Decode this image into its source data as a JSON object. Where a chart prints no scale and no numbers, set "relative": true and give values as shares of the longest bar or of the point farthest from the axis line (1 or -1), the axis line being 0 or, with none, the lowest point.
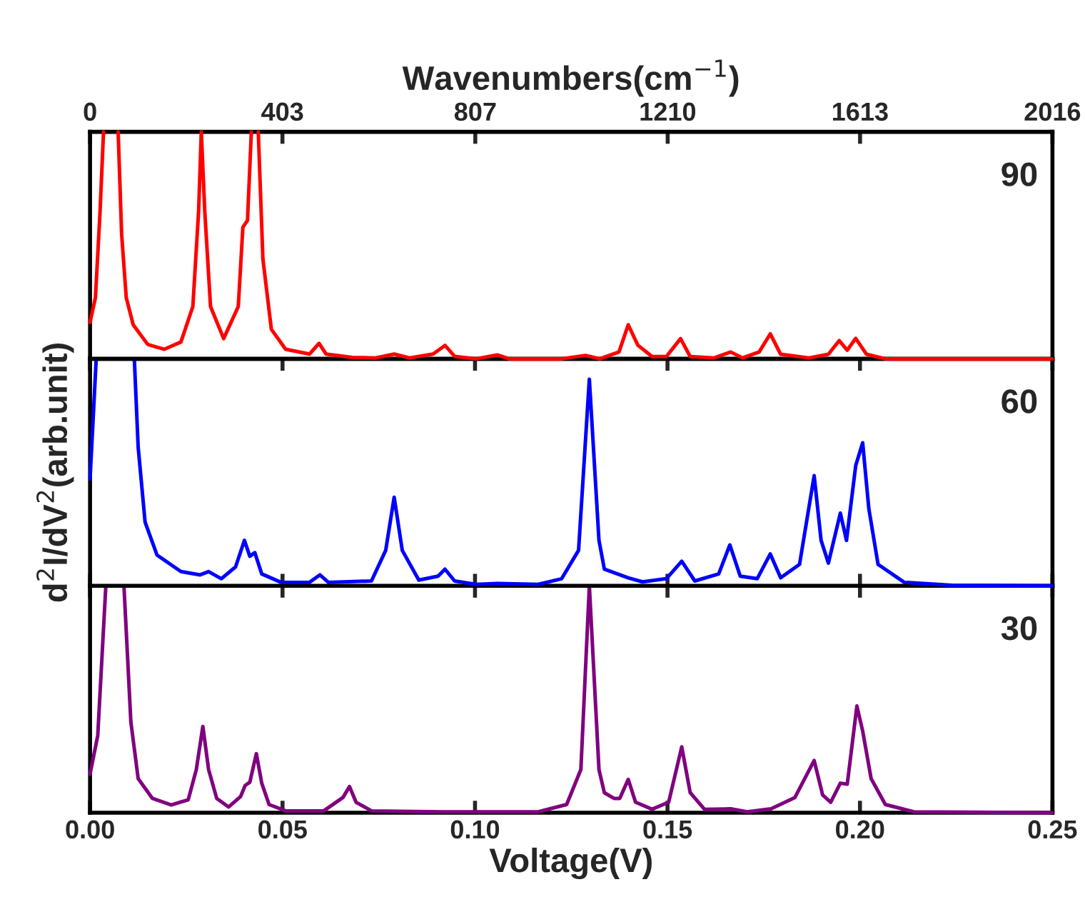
{
  "chart_data": [
    {
      "type": "line",
      "relative": true,
      "annotations": [
        "90"
      ],
      "tick_labels": "x2",
      "xlim": [
        0,
        0.25
      ],
      "x2label": "Wavenumbers(cm$^{−1}$)",
      "x2lim": [
        0,
        2016
      ],
      "x2ticks": [
        0,
        403,
        807,
        1210,
        1613,
        2016
      ],
      "series": [
        {
          "color": "#ff0000",
          "x": [
            0.0,
            0.0014,
            0.0026,
            0.0035,
            0.0054,
            0.0073,
            0.0082,
            0.0094,
            0.0112,
            0.015,
            0.0193,
            0.0236,
            0.0267,
            0.0282,
            0.0289,
            0.0298,
            0.0313,
            0.0347,
            0.0385,
            0.0397,
            0.0409,
            0.0419,
            0.0428,
            0.0437,
            0.0449,
            0.0471,
            0.0508,
            0.057,
            0.0595,
            0.0613,
            0.0681,
            0.0742,
            0.079,
            0.083,
            0.0891,
            0.0922,
            0.0947,
            0.1003,
            0.1058,
            0.1089,
            0.1225,
            0.1287,
            0.1324,
            0.1374,
            0.1398,
            0.1423,
            0.146,
            0.1497,
            0.1534,
            0.1559,
            0.1621,
            0.1664,
            0.1695,
            0.1738,
            0.1767,
            0.1794,
            0.1868,
            0.1918,
            0.1946,
            0.1967,
            0.1989,
            0.2017,
            0.2066,
            0.2499
          ],
          "values": [
            0.16,
            0.27,
            0.65,
            1,
            null,
            1,
            0.55,
            0.27,
            0.15,
            0.063,
            0.042,
            0.074,
            0.23,
            0.65,
            1,
            0.65,
            0.23,
            0.089,
            0.23,
            0.58,
            0.61,
            1,
            null,
            1,
            0.44,
            0.13,
            0.042,
            0.021,
            0.068,
            0.021,
            0.006,
            0.004,
            0.021,
            0.004,
            0.021,
            0.059,
            0.011,
            0,
            0.017,
            0,
            0,
            0.015,
            0,
            0.03,
            0.15,
            0.06,
            0.01,
            0.01,
            0.089,
            0.01,
            0.004,
            0.03,
            0.004,
            0.03,
            0.11,
            0.02,
            0.004,
            0.02,
            0.08,
            0.038,
            0.09,
            0.02,
            0,
            0
          ]
        }
      ]
    },
    {
      "type": "line",
      "relative": true,
      "annotations": [
        "60"
      ],
      "tick_labels": false,
      "xlim": [
        0,
        0.25
      ],
      "xticks": [
        {
          "value": 0,
          "label": null
        },
        {
          "value": 0.05,
          "label": null
        },
        {
          "value": 0.1,
          "label": null
        },
        {
          "value": 0.15,
          "label": null
        },
        {
          "value": 0.2,
          "label": null
        },
        {
          "value": 0.25,
          "label": null
        }
      ],
      "ylabel": "d$^{2}$I/dV$^{2}$(arb.unit)",
      "series": [
        {
          "color": "#0000ff",
          "x": [
            0.0,
            0.0016,
            0.0065,
            0.0115,
            0.0125,
            0.0143,
            0.0174,
            0.0236,
            0.0286,
            0.0308,
            0.0341,
            0.0378,
            0.0401,
            0.0415,
            0.0428,
            0.0446,
            0.0496,
            0.057,
            0.0597,
            0.0619,
            0.0731,
            0.0768,
            0.079,
            0.0811,
            0.0854,
            0.0904,
            0.0922,
            0.0947,
            0.1003,
            0.1058,
            0.1164,
            0.1225,
            0.1269,
            0.1297,
            0.1322,
            0.1336,
            0.1398,
            0.1435,
            0.1497,
            0.1537,
            0.1571,
            0.1633,
            0.1662,
            0.1689,
            0.1733,
            0.1767,
            0.1794,
            0.1843,
            0.1881,
            0.1899,
            0.1918,
            0.1949,
            0.1965,
            0.1989,
            0.2007,
            0.2023,
            0.2047,
            0.2115,
            0.2239,
            0.2499
          ],
          "values": [
            0.47,
            1,
            null,
            1,
            0.61,
            0.28,
            0.135,
            0.0625,
            0.048,
            0.0625,
            0.031,
            0.083,
            0.2,
            0.13,
            0.146,
            0.052,
            0.015,
            0.015,
            0.048,
            0.015,
            0.021,
            0.156,
            0.39,
            0.156,
            0.025,
            0.042,
            0.073,
            0.021,
            0.006,
            0.01,
            0.006,
            0.031,
            0.156,
            0.91,
            0.2,
            0.073,
            0.035,
            0.017,
            0.031,
            0.108,
            0.021,
            0.052,
            0.18,
            0.042,
            0.031,
            0.14,
            0.035,
            0.094,
            0.485,
            0.2,
            0.1,
            0.32,
            0.2,
            0.53,
            0.63,
            0.34,
            0.094,
            0.015,
            0.002,
            0
          ]
        }
      ]
    },
    {
      "type": "line",
      "relative": true,
      "annotations": [
        "30"
      ],
      "tick_labels": "x",
      "xlim": [
        0,
        0.25
      ],
      "xticks": [
        {
          "value": 0,
          "label": "0.00"
        },
        {
          "value": 0.05,
          "label": "0.05"
        },
        {
          "value": 0.1,
          "label": "0.10"
        },
        {
          "value": 0.15,
          "label": "0.15"
        },
        {
          "value": 0.2,
          "label": "0.20"
        },
        {
          "value": 0.25,
          "label": "0.25"
        }
      ],
      "xlabel": "Voltage(V)",
      "series": [
        {
          "color": "#800080",
          "x": [
            0.0,
            0.002,
            0.0041,
            0.0065,
            0.0088,
            0.0106,
            0.0125,
            0.0162,
            0.0211,
            0.0255,
            0.0276,
            0.0293,
            0.0308,
            0.0329,
            0.036,
            0.0391,
            0.0403,
            0.0415,
            0.0432,
            0.0446,
            0.0465,
            0.0508,
            0.0607,
            0.0657,
            0.0674,
            0.0691,
            0.0731,
            0.0916,
            0.1164,
            0.1238,
            0.1275,
            0.1297,
            0.1322,
            0.1336,
            0.1361,
            0.1376,
            0.1398,
            0.1417,
            0.146,
            0.1503,
            0.1537,
            0.1559,
            0.1596,
            0.1664,
            0.1707,
            0.1769,
            0.1831,
            0.1881,
            0.1903,
            0.1924,
            0.1949,
            0.1967,
            0.1992,
            0.2007,
            0.2029,
            0.2066,
            0.214,
            0.2499
          ],
          "values": [
            0.17,
            0.34,
            1,
            null,
            1,
            0.4,
            0.15,
            0.063,
            0.034,
            0.057,
            0.19,
            0.38,
            0.19,
            0.063,
            0.025,
            0.071,
            0.12,
            0.134,
            0.26,
            0.13,
            0.036,
            0.008,
            0.008,
            0.067,
            0.115,
            0.046,
            0.008,
            0.004,
            0.004,
            0.036,
            0.19,
            1,
            0.19,
            0.088,
            0.063,
            0.063,
            0.147,
            0.046,
            0.015,
            0.046,
            0.29,
            0.088,
            0.015,
            0.017,
            0.004,
            0.017,
            0.067,
            0.23,
            0.078,
            0.046,
            0.13,
            0.126,
            0.47,
            0.36,
            0.15,
            0.036,
            0.004,
            0
          ]
        }
      ]
    }
  ]
}
